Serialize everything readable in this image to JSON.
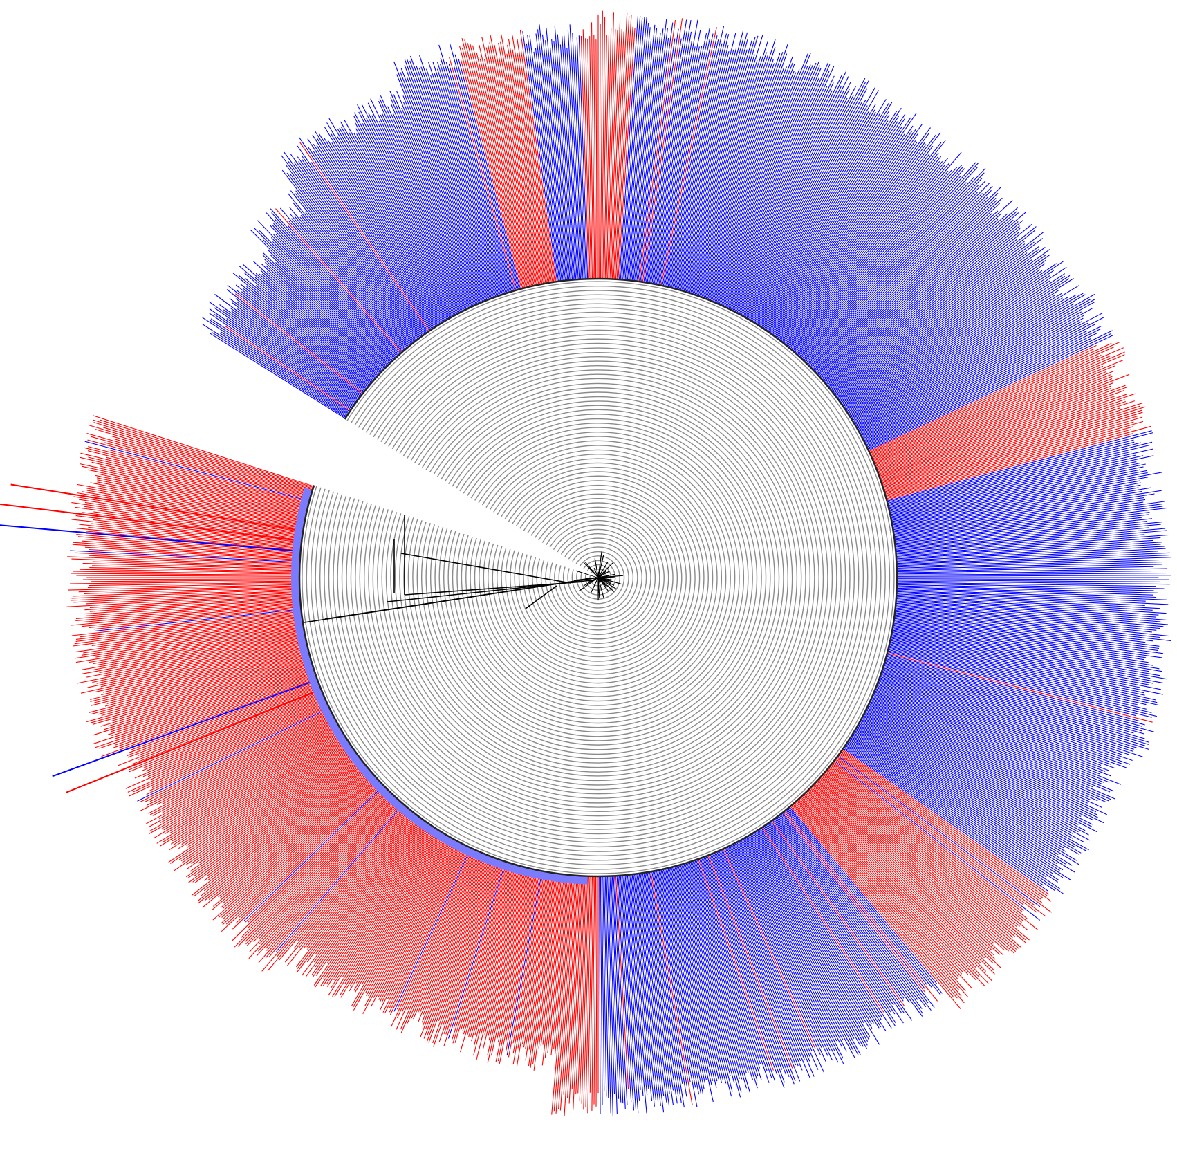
{
  "figure": {
    "type": "circular-phylogenetic-tree",
    "background_color": "#ffffff",
    "gap_sector": "upper-left",
    "colors": {
      "group_blue": "#0000ff",
      "group_red": "#ff0000",
      "inner_band": "#7b7bff",
      "tree_rings": "#8a8a8a",
      "tree_branches": "#000000"
    },
    "clades": [
      {
        "color_key": "group_blue",
        "label_color": "blue"
      },
      {
        "color_key": "group_red",
        "label_color": "red"
      }
    ],
    "legend": null,
    "title": null
  }
}
